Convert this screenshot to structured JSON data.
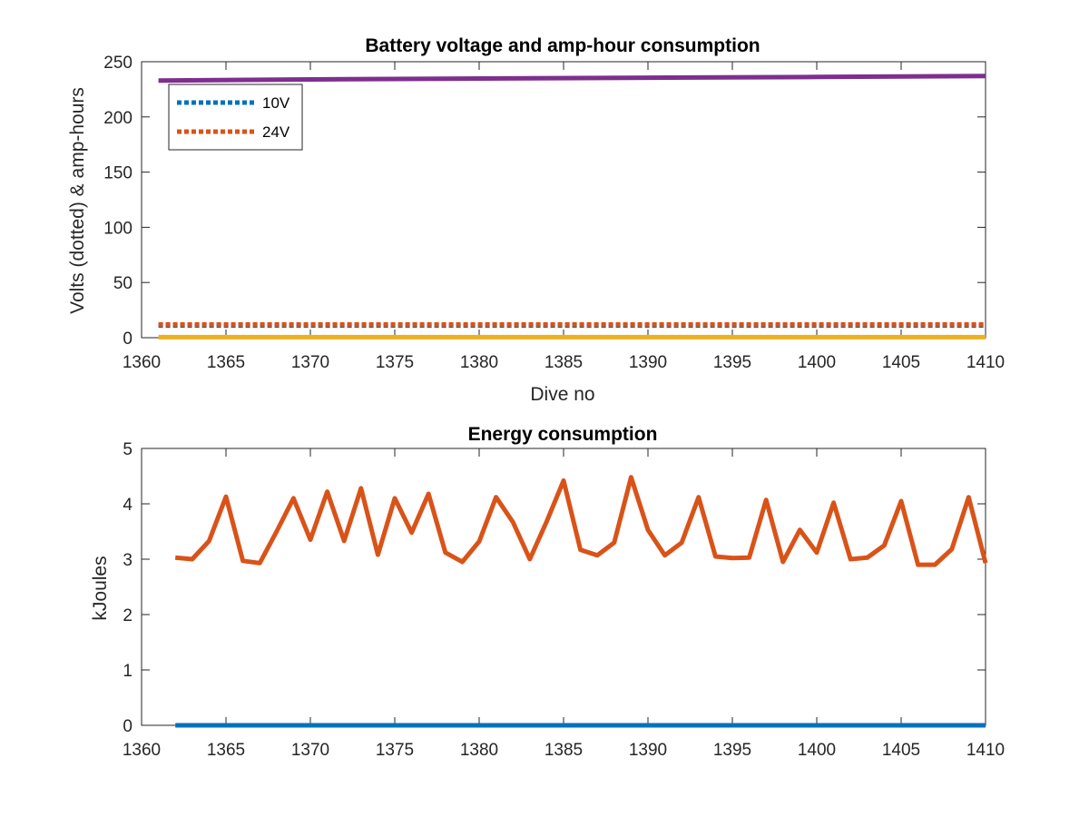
{
  "chart_data": [
    {
      "type": "line",
      "title": "Battery voltage and amp-hour consumption",
      "xlabel": "Dive no",
      "ylabel": "Volts (dotted) & amp-hours",
      "xlim": [
        1360,
        1410
      ],
      "ylim": [
        0,
        250
      ],
      "xticks": [
        1360,
        1365,
        1370,
        1375,
        1380,
        1385,
        1390,
        1395,
        1400,
        1405,
        1410
      ],
      "yticks": [
        0,
        50,
        100,
        150,
        200,
        250
      ],
      "grid": false,
      "legend_position": "top-left",
      "series": [
        {
          "name": "10V",
          "style": "dotted",
          "color": "#0072BD",
          "x": [
            1361,
            1410
          ],
          "y": [
            11,
            11
          ]
        },
        {
          "name": "24V",
          "style": "dotted",
          "color": "#D95319",
          "x": [
            1361,
            1410
          ],
          "y": [
            12,
            12
          ]
        },
        {
          "style": "solid",
          "color": "#7E2F8E",
          "x": [
            1361,
            1370,
            1380,
            1390,
            1400,
            1410
          ],
          "y": [
            233,
            234,
            234.8,
            235.5,
            236.2,
            237
          ]
        },
        {
          "style": "solid",
          "color": "#EDB120",
          "x": [
            1361,
            1410
          ],
          "y": [
            0.5,
            0.5
          ]
        }
      ]
    },
    {
      "type": "line",
      "title": "Energy consumption",
      "xlabel": "",
      "ylabel": "kJoules",
      "xlim": [
        1360,
        1410
      ],
      "ylim": [
        0,
        5
      ],
      "xticks": [
        1360,
        1365,
        1370,
        1375,
        1380,
        1385,
        1390,
        1395,
        1400,
        1405,
        1410
      ],
      "yticks": [
        0,
        1,
        2,
        3,
        4,
        5
      ],
      "grid": false,
      "series": [
        {
          "style": "solid",
          "color": "#0072BD",
          "x": [
            1362,
            1410
          ],
          "y": [
            0,
            0
          ]
        },
        {
          "style": "solid",
          "color": "#D95319",
          "x": [
            1362,
            1363,
            1364,
            1365,
            1366,
            1367,
            1368,
            1369,
            1370,
            1371,
            1372,
            1373,
            1374,
            1375,
            1376,
            1377,
            1378,
            1379,
            1380,
            1381,
            1382,
            1383,
            1384,
            1385,
            1386,
            1387,
            1388,
            1389,
            1390,
            1391,
            1392,
            1393,
            1394,
            1395,
            1396,
            1397,
            1398,
            1399,
            1400,
            1401,
            1402,
            1403,
            1404,
            1405,
            1406,
            1407,
            1408,
            1409,
            1410
          ],
          "y": [
            3.03,
            3.0,
            3.33,
            4.13,
            2.97,
            2.93,
            3.5,
            4.1,
            3.35,
            4.22,
            3.33,
            4.28,
            3.08,
            4.1,
            3.48,
            4.18,
            3.12,
            2.95,
            3.32,
            4.12,
            3.67,
            3.0,
            3.68,
            4.42,
            3.17,
            3.07,
            3.3,
            4.48,
            3.53,
            3.07,
            3.3,
            4.12,
            3.05,
            3.02,
            3.03,
            4.07,
            2.95,
            3.53,
            3.12,
            4.02,
            3.0,
            3.03,
            3.25,
            4.05,
            2.9,
            2.9,
            3.18,
            4.12,
            2.93
          ]
        }
      ]
    }
  ]
}
